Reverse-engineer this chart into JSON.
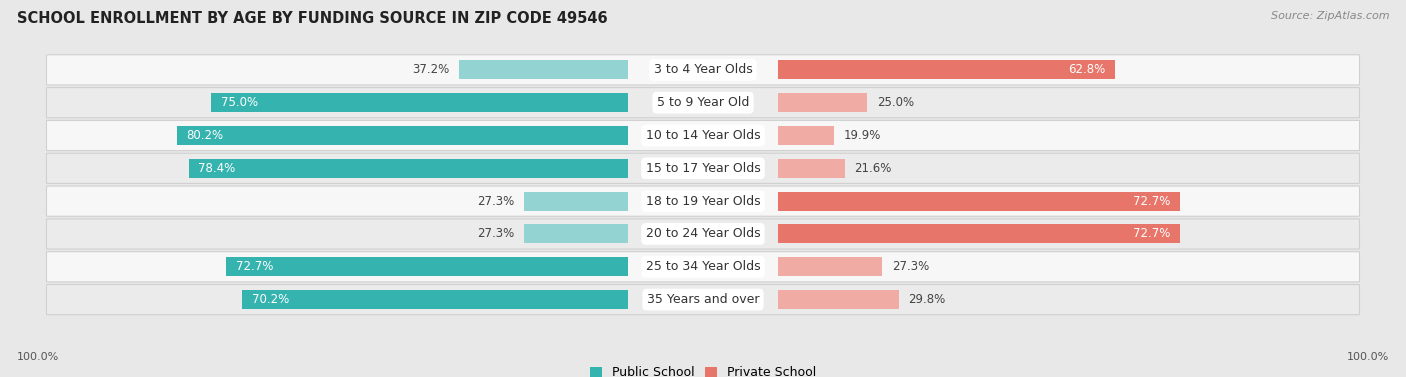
{
  "title": "SCHOOL ENROLLMENT BY AGE BY FUNDING SOURCE IN ZIP CODE 49546",
  "source": "Source: ZipAtlas.com",
  "categories": [
    "3 to 4 Year Olds",
    "5 to 9 Year Old",
    "10 to 14 Year Olds",
    "15 to 17 Year Olds",
    "18 to 19 Year Olds",
    "20 to 24 Year Olds",
    "25 to 34 Year Olds",
    "35 Years and over"
  ],
  "public_values": [
    37.2,
    75.0,
    80.2,
    78.4,
    27.3,
    27.3,
    72.7,
    70.2
  ],
  "private_values": [
    62.8,
    25.0,
    19.9,
    21.6,
    72.7,
    72.7,
    27.3,
    29.8
  ],
  "public_color_dark": "#35b3ae",
  "public_color_light": "#93d4d2",
  "private_color_dark": "#e8756a",
  "private_color_light": "#f0aca4",
  "background_color": "#e8e8e8",
  "row_bg_light": "#f7f7f7",
  "row_bg_dark": "#ebebeb",
  "title_fontsize": 10.5,
  "label_fontsize": 9,
  "value_fontsize": 8.5,
  "legend_fontsize": 9,
  "source_fontsize": 8,
  "axis_label_fontsize": 8,
  "axis_left_label": "100.0%",
  "axis_right_label": "100.0%",
  "public_threshold": 50,
  "private_threshold": 50,
  "max_val": 100
}
